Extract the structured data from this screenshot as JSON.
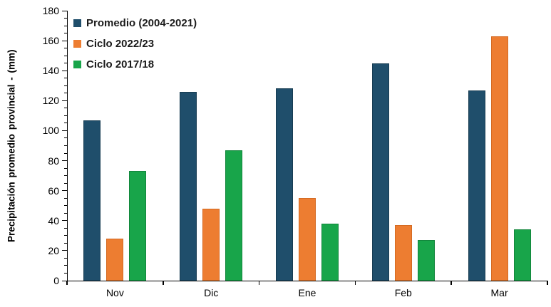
{
  "chart_data": {
    "type": "bar",
    "title": "",
    "categories": [
      "Nov",
      "Dic",
      "Ene",
      "Feb",
      "Mar"
    ],
    "series": [
      {
        "name": "Promedio (2004-2021)",
        "color": "#1F4E6B",
        "border_color": "#173C52",
        "values": [
          107,
          126,
          128,
          145,
          127
        ]
      },
      {
        "name": "Ciclo 2022/23",
        "color": "#ED7D31",
        "border_color": "#D46A22",
        "values": [
          28,
          48,
          55,
          37,
          163
        ]
      },
      {
        "name": "Ciclo 2017/18",
        "color": "#18A54A",
        "border_color": "#12863C",
        "values": [
          73,
          87,
          38,
          27,
          34
        ]
      }
    ],
    "xlabel": "",
    "ylabel": "Precipitación promedio provincial - (mm)",
    "ylim": [
      0,
      180
    ],
    "ytick_step": 20,
    "yminor_step": 5,
    "ytick_labels": [
      "0",
      "20",
      "40",
      "60",
      "80",
      "100",
      "120",
      "140",
      "160",
      "180"
    ],
    "grid": false,
    "legend_position": "top-left",
    "axis_color": "#000000",
    "background_color": "#ffffff"
  }
}
